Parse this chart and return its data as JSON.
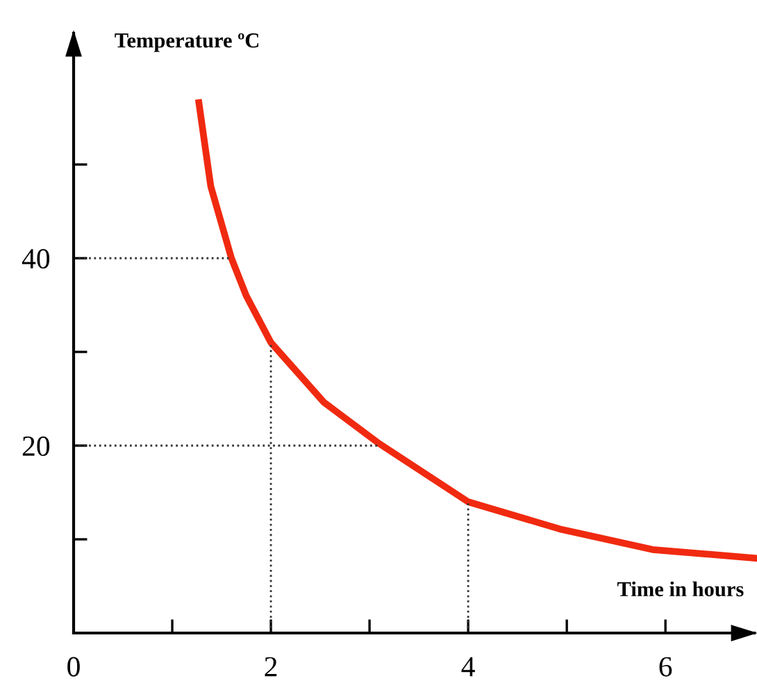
{
  "chart_data": {
    "type": "line",
    "xlabel": "Time in hours",
    "ylabel": "Temperature ºC",
    "xlim": [
      0,
      6.9
    ],
    "ylim": [
      0,
      64
    ],
    "xticks": [
      {
        "value": 0,
        "label": "0"
      },
      {
        "value": 1,
        "label": null
      },
      2,
      {
        "value": 3,
        "label": null
      },
      4,
      {
        "value": 5,
        "label": null
      },
      6
    ],
    "yticks": [
      {
        "value": 10,
        "label": null
      },
      20,
      {
        "value": 30,
        "label": null
      },
      40,
      {
        "value": 50,
        "label": null
      }
    ],
    "grid": false,
    "legend": false,
    "series": [
      {
        "color": "#f02a10",
        "line_style": "solid",
        "x": [
          1.27,
          1.39,
          1.6,
          1.75,
          2,
          2.54,
          3.1,
          4,
          4.93,
          5.87,
          6.9
        ],
        "values": [
          56.6,
          47.7,
          40,
          36,
          31,
          24.6,
          20.2,
          14,
          11.1,
          8.9,
          8.0
        ]
      },
      {
        "color": "#333333",
        "line_style": "dotted",
        "x": [
          0,
          1.6
        ],
        "values": [
          40,
          40
        ]
      },
      {
        "color": "#333333",
        "line_style": "dotted",
        "x": [
          0,
          3.1
        ],
        "values": [
          20,
          20
        ]
      },
      {
        "color": "#333333",
        "line_style": "dotted",
        "x": [
          2,
          2
        ],
        "values": [
          0,
          31
        ]
      },
      {
        "color": "#333333",
        "line_style": "dotted",
        "x": [
          4,
          4
        ],
        "values": [
          0,
          14
        ]
      }
    ]
  }
}
